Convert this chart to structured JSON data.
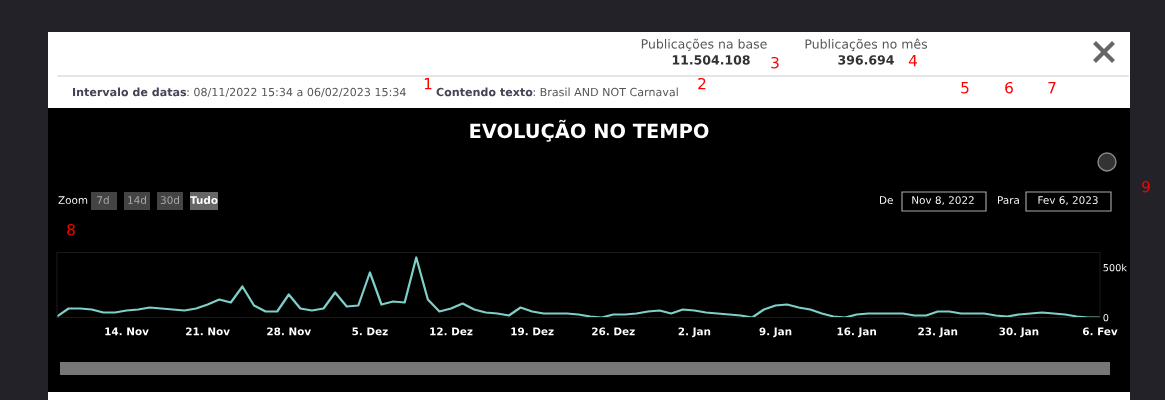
{
  "chart_data": {
    "type": "line",
    "title": "EVOLUÇÃO NO TEMPO",
    "x": [
      "2022-11-08",
      "2022-11-09",
      "2022-11-10",
      "2022-11-11",
      "2022-11-12",
      "2022-11-13",
      "2022-11-14",
      "2022-11-15",
      "2022-11-16",
      "2022-11-17",
      "2022-11-18",
      "2022-11-19",
      "2022-11-20",
      "2022-11-21",
      "2022-11-22",
      "2022-11-23",
      "2022-11-24",
      "2022-11-25",
      "2022-11-26",
      "2022-11-27",
      "2022-11-28",
      "2022-11-29",
      "2022-11-30",
      "2022-12-01",
      "2022-12-02",
      "2022-12-03",
      "2022-12-04",
      "2022-12-05",
      "2022-12-06",
      "2022-12-07",
      "2022-12-08",
      "2022-12-09",
      "2022-12-10",
      "2022-12-11",
      "2022-12-12",
      "2022-12-13",
      "2022-12-14",
      "2022-12-15",
      "2022-12-16",
      "2022-12-17",
      "2022-12-18",
      "2022-12-19",
      "2022-12-20",
      "2022-12-21",
      "2022-12-22",
      "2022-12-23",
      "2022-12-24",
      "2022-12-25",
      "2022-12-26",
      "2022-12-27",
      "2022-12-28",
      "2022-12-29",
      "2022-12-30",
      "2022-12-31",
      "2023-01-01",
      "2023-01-02",
      "2023-01-03",
      "2023-01-04",
      "2023-01-05",
      "2023-01-06",
      "2023-01-07",
      "2023-01-08",
      "2023-01-09",
      "2023-01-10",
      "2023-01-11",
      "2023-01-12",
      "2023-01-13",
      "2023-01-14",
      "2023-01-15",
      "2023-01-16",
      "2023-01-17",
      "2023-01-18",
      "2023-01-19",
      "2023-01-20",
      "2023-01-21",
      "2023-01-22",
      "2023-01-23",
      "2023-01-24",
      "2023-01-25",
      "2023-01-26",
      "2023-01-27",
      "2023-01-28",
      "2023-01-29",
      "2023-01-30",
      "2023-01-31",
      "2023-02-01",
      "2023-02-02",
      "2023-02-03",
      "2023-02-04",
      "2023-02-05",
      "2023-02-06"
    ],
    "series": [
      {
        "color": "#7fcfc9",
        "values": [
          10000,
          90000,
          90000,
          80000,
          50000,
          50000,
          70000,
          80000,
          100000,
          90000,
          80000,
          70000,
          90000,
          130000,
          180000,
          150000,
          310000,
          120000,
          60000,
          60000,
          230000,
          90000,
          70000,
          90000,
          250000,
          110000,
          120000,
          450000,
          130000,
          160000,
          150000,
          600000,
          180000,
          60000,
          90000,
          140000,
          80000,
          50000,
          40000,
          20000,
          100000,
          60000,
          40000,
          40000,
          40000,
          30000,
          10000,
          0,
          30000,
          30000,
          40000,
          60000,
          70000,
          40000,
          80000,
          70000,
          50000,
          40000,
          30000,
          20000,
          0,
          80000,
          120000,
          130000,
          100000,
          80000,
          40000,
          10000,
          0,
          30000,
          40000,
          40000,
          40000,
          40000,
          20000,
          20000,
          60000,
          60000,
          40000,
          40000,
          40000,
          20000,
          10000,
          30000,
          40000,
          50000,
          40000,
          30000,
          10000,
          0,
          0
        ]
      }
    ],
    "xlim": [
      "2022-11-08",
      "2023-02-06"
    ],
    "xticks": [
      {
        "value": "2022-11-14",
        "label": "14. Nov"
      },
      {
        "value": "2022-11-21",
        "label": "21. Nov"
      },
      {
        "value": "2022-11-28",
        "label": "28. Nov"
      },
      {
        "value": "2022-12-05",
        "label": "5. Dez"
      },
      {
        "value": "2022-12-12",
        "label": "12. Dez"
      },
      {
        "value": "2022-12-19",
        "label": "19. Dez"
      },
      {
        "value": "2022-12-26",
        "label": "26. Dez"
      },
      {
        "value": "2023-01-02",
        "label": "2. Jan"
      },
      {
        "value": "2023-01-09",
        "label": "9. Jan"
      },
      {
        "value": "2023-01-16",
        "label": "16. Jan"
      },
      {
        "value": "2023-01-23",
        "label": "23. Jan"
      },
      {
        "value": "2023-01-30",
        "label": "30. Jan"
      },
      {
        "value": "2023-02-06",
        "label": "6. Fev"
      }
    ],
    "ylim": [
      0,
      650000
    ],
    "yticks": [
      0,
      {
        "value": 500000,
        "label": "500k"
      }
    ],
    "grid": false,
    "legend": false,
    "marker": "none",
    "line_style": "solid",
    "annotations": [
      "Intervalo de datas: 08/11/2022 15:34 a 06/02/2023 15:34",
      "Contendo texto: Brasil AND NOT Carnaval",
      "Publicações na base",
      "11.504.108",
      "Publicações no mês",
      "396.694",
      "Zoom",
      "7d",
      "14d",
      "30d",
      "Tudo",
      "De",
      "Nov 8, 2022",
      "Para",
      "Fev 6, 2023",
      "1",
      "2",
      "3",
      "4",
      "5",
      "6",
      "7",
      "8",
      "9"
    ]
  }
}
